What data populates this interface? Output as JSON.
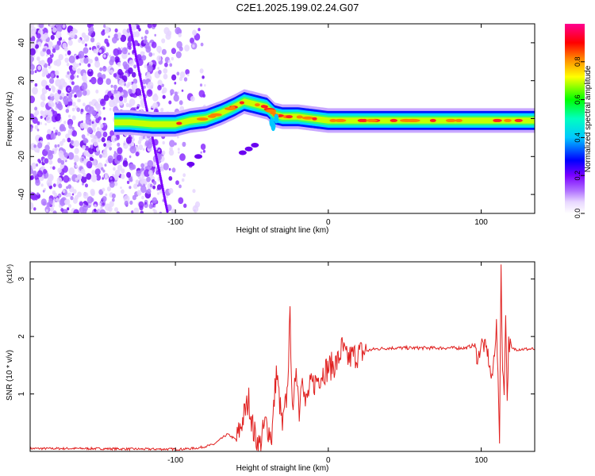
{
  "title": "C2E1.2025.199.02.24.G07",
  "chart_data": [
    {
      "type": "heatmap",
      "title": "C2E1.2025.199.02.24.G07",
      "xlabel": "Height of straight line (km)",
      "ylabel": "Frequency (Hz)",
      "xlim": [
        -195,
        135
      ],
      "ylim": [
        -50,
        50
      ],
      "xticks": [
        -100,
        0,
        100
      ],
      "yticks": [
        -40,
        -20,
        0,
        20,
        40
      ],
      "colorbar": {
        "label": "Normalized spectral amplitude",
        "range": [
          0,
          1
        ],
        "ticks": [
          0.0,
          0.2,
          0.4,
          0.6,
          0.8
        ],
        "colors": [
          "#ffffff",
          "#e8d8ff",
          "#7a00ff",
          "#0000ff",
          "#00ffff",
          "#00ff00",
          "#ffff00",
          "#ff8000",
          "#ff0000",
          "#ff0080"
        ]
      },
      "ridge": {
        "x": [
          -140,
          -130,
          -115,
          -108,
          -100,
          -90,
          -80,
          -70,
          -62,
          -55,
          -50,
          -45,
          -40,
          -35,
          -30,
          -25,
          -20,
          -10,
          0,
          10,
          20,
          30,
          50,
          70,
          90,
          100,
          110,
          120,
          135
        ],
        "y": [
          -2,
          -2,
          -3,
          -3,
          -3,
          -1,
          0,
          3,
          6,
          9,
          8,
          7,
          6,
          2,
          1,
          1,
          1,
          0,
          -1,
          -1,
          -1,
          -1,
          -1,
          -1,
          -1,
          -1,
          -1,
          -1,
          -1
        ]
      }
    },
    {
      "type": "line",
      "xlabel": "Height of straight line (km)",
      "ylabel": "SNR (10 * v/v)",
      "yscale_label": "(x10⁴)",
      "xlim": [
        -195,
        135
      ],
      "ylim": [
        0,
        3.3
      ],
      "xticks": [
        -100,
        0,
        100
      ],
      "yticks": [
        1,
        2,
        3
      ],
      "color": "#e0201f",
      "series": [
        {
          "x": [
            -195,
            -160,
            -120,
            -95,
            -85,
            -75,
            -70,
            -66,
            -60,
            -56,
            -52,
            -49,
            -45,
            -41,
            -37,
            -34,
            -30,
            -27,
            -25,
            -23,
            -21,
            -19,
            -17,
            -15,
            -12,
            -9,
            -6,
            -3,
            0,
            3,
            6,
            9,
            12,
            15,
            20,
            25,
            30,
            40,
            50,
            60,
            70,
            80,
            90,
            95,
            98,
            100,
            104,
            107,
            110,
            112,
            113,
            114,
            115,
            116,
            117,
            118,
            120,
            125,
            135
          ],
          "y": [
            0.05,
            0.05,
            0.04,
            0.04,
            0.06,
            0.12,
            0.22,
            0.3,
            0.2,
            0.55,
            0.9,
            0.35,
            0.1,
            0.5,
            0.25,
            1.4,
            0.4,
            1.0,
            2.3,
            0.5,
            1.6,
            0.7,
            1.5,
            0.8,
            1.1,
            1.2,
            1.3,
            1.4,
            1.45,
            1.5,
            1.55,
            1.8,
            1.6,
            1.65,
            1.7,
            1.75,
            1.78,
            1.8,
            1.8,
            1.8,
            1.8,
            1.8,
            1.8,
            1.85,
            1.6,
            1.9,
            1.75,
            1.2,
            2.2,
            0.25,
            3.25,
            1.4,
            1.0,
            2.5,
            0.9,
            1.9,
            1.78,
            1.78,
            1.78
          ]
        }
      ]
    }
  ]
}
